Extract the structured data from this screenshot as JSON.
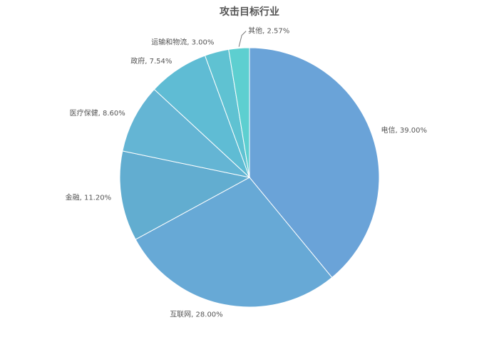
{
  "chart_data": {
    "type": "pie",
    "title": "攻击目标行业",
    "values": [
      39.0,
      28.0,
      11.2,
      8.6,
      7.54,
      3.0,
      2.57
    ],
    "value_labels": [
      "电信, 39.00%",
      "互联网, 28.00%",
      "金融, 11.20%",
      "医疗保健, 8.60%",
      "政府, 7.54%",
      "运输和物流, 3.00%",
      "其他, 2.57%"
    ],
    "colors": [
      "#6aa3d8",
      "#67a9d6",
      "#62add0",
      "#64b5d4",
      "#5fbcd4",
      "#5fc2d2",
      "#5dcfd0"
    ]
  }
}
